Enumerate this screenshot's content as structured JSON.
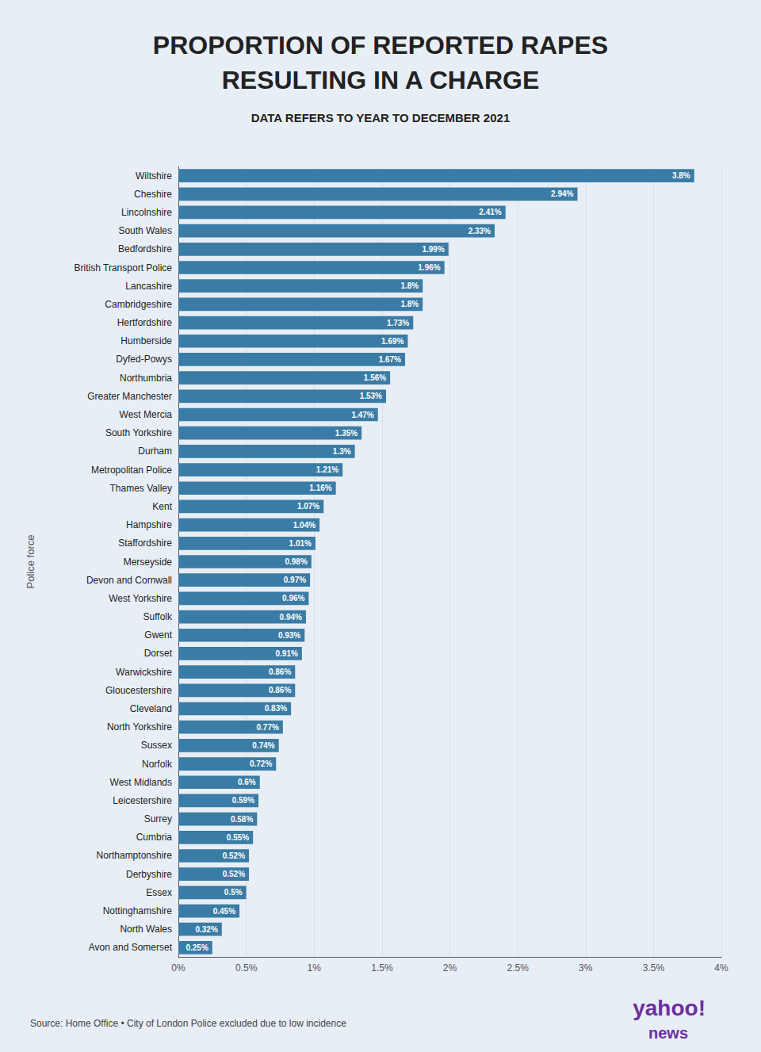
{
  "chart_data": {
    "type": "bar",
    "orientation": "horizontal",
    "title": "PROPORTION OF REPORTED RAPES\nRESULTING IN A CHARGE",
    "subtitle": "DATA REFERS TO YEAR TO DECEMBER 2021",
    "ylabel": "Police force",
    "annotations": [
      "Source: Home Office • City of London Police excluded due to low incidence",
      "yahoo!",
      "news"
    ],
    "color": "#3a7ca5",
    "categories": [
      "Wiltshire",
      "Cheshire",
      "Lincolnshire",
      "South Wales",
      "Bedfordshire",
      "British Transport Police",
      "Lancashire",
      "Cambridgeshire",
      "Hertfordshire",
      "Humberside",
      "Dyfed-Powys",
      "Northumbria",
      "Greater Manchester",
      "West Mercia",
      "South Yorkshire",
      "Durham",
      "Metropolitan Police",
      "Thames Valley",
      "Kent",
      "Hampshire",
      "Staffordshire",
      "Merseyside",
      "Devon and Cornwall",
      "West Yorkshire",
      "Suffolk",
      "Gwent",
      "Dorset",
      "Warwickshire",
      "Gloucestershire",
      "Cleveland",
      "North Yorkshire",
      "Sussex",
      "Norfolk",
      "West Midlands",
      "Leicestershire",
      "Surrey",
      "Cumbria",
      "Northamptonshire",
      "Derbyshire",
      "Essex",
      "Nottinghamshire",
      "North Wales",
      "Avon and Somerset"
    ],
    "values": [
      3.8,
      2.94,
      2.41,
      2.33,
      1.99,
      1.96,
      1.8,
      1.8,
      1.73,
      1.69,
      1.67,
      1.56,
      1.53,
      1.47,
      1.35,
      1.3,
      1.21,
      1.16,
      1.07,
      1.04,
      1.01,
      0.98,
      0.97,
      0.96,
      0.94,
      0.93,
      0.91,
      0.86,
      0.86,
      0.83,
      0.77,
      0.74,
      0.72,
      0.6,
      0.59,
      0.58,
      0.55,
      0.52,
      0.52,
      0.5,
      0.45,
      0.32,
      0.25
    ],
    "value_labels": [
      "3.8%",
      "2.94%",
      "2.41%",
      "2.33%",
      "1.99%",
      "1.96%",
      "1.8%",
      "1.8%",
      "1.73%",
      "1.69%",
      "1.67%",
      "1.56%",
      "1.53%",
      "1.47%",
      "1.35%",
      "1.3%",
      "1.21%",
      "1.16%",
      "1.07%",
      "1.04%",
      "1.01%",
      "0.98%",
      "0.97%",
      "0.96%",
      "0.94%",
      "0.93%",
      "0.91%",
      "0.86%",
      "0.86%",
      "0.83%",
      "0.77%",
      "0.74%",
      "0.72%",
      "0.6%",
      "0.59%",
      "0.58%",
      "0.55%",
      "0.52%",
      "0.52%",
      "0.5%",
      "0.45%",
      "0.32%",
      "0.25%"
    ],
    "data_labels": true,
    "xlim": [
      0,
      4.0
    ],
    "xticks": [
      {
        "value": 0,
        "label": "0%"
      },
      {
        "value": 0.5,
        "label": "0.5%"
      },
      {
        "value": 1.0,
        "label": "1%"
      },
      {
        "value": 1.5,
        "label": "1.5%"
      },
      {
        "value": 2.0,
        "label": "2%"
      },
      {
        "value": 2.5,
        "label": "2.5%"
      },
      {
        "value": 3.0,
        "label": "3%"
      },
      {
        "value": 3.5,
        "label": "3.5%"
      },
      {
        "value": 4.0,
        "label": "4%"
      }
    ],
    "grid": true
  }
}
